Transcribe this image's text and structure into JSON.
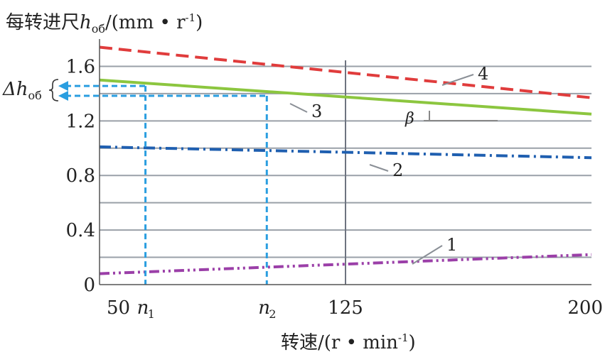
{
  "chart_data": {
    "type": "line",
    "ylabel_prefix": "每转进尺",
    "ylabel_symbol": "h",
    "ylabel_sub": "об",
    "ylabel_unit": "/(mm • r",
    "ylabel_sup": "-1",
    "ylabel_close": ")",
    "xlabel_main": "转速/(r • min",
    "xlabel_sup": "-1",
    "xlabel_close": ")",
    "xlim": [
      50,
      200
    ],
    "ylim": [
      0,
      1.8
    ],
    "x_ticks": [
      {
        "value": 50,
        "label": "50"
      },
      {
        "value": 125,
        "label": "125"
      },
      {
        "value": 200,
        "label": "200"
      }
    ],
    "y_ticks": [
      {
        "value": 0,
        "label": "0"
      },
      {
        "value": 0.4,
        "label": "0.4"
      },
      {
        "value": 0.8,
        "label": "0.8"
      },
      {
        "value": 1.2,
        "label": "1.2"
      },
      {
        "value": 1.6,
        "label": "1.6"
      }
    ],
    "gridlines_y": [
      0.2,
      0.4,
      0.6,
      0.8,
      1.0,
      1.2,
      1.4,
      1.6
    ],
    "vertical_grid_x": [
      125
    ],
    "grid": true,
    "series": [
      {
        "name": "1",
        "color": "#9b3fa8",
        "style": "dash-dot-dot",
        "x": [
          50,
          200
        ],
        "y": [
          0.08,
          0.22
        ]
      },
      {
        "name": "2",
        "color": "#1f5fb0",
        "style": "dash-dot",
        "x": [
          50,
          200
        ],
        "y": [
          1.01,
          0.93
        ]
      },
      {
        "name": "3",
        "color": "#8cc63f",
        "style": "solid",
        "x": [
          50,
          200
        ],
        "y": [
          1.5,
          1.25
        ]
      },
      {
        "name": "4",
        "color": "#e03c3c",
        "style": "dashed",
        "x": [
          50,
          200
        ],
        "y": [
          1.74,
          1.37
        ]
      }
    ],
    "markers": [
      {
        "label": "n",
        "sub": "1",
        "x": 64
      },
      {
        "label": "n",
        "sub": "2",
        "x": 101
      }
    ],
    "delta": {
      "symbol": "Δh",
      "sub": "об"
    },
    "beta_label": "β"
  },
  "colors": {
    "grid": "#9aa0a8",
    "axis": "#555555",
    "marker_lines": "#2a9ee0"
  }
}
